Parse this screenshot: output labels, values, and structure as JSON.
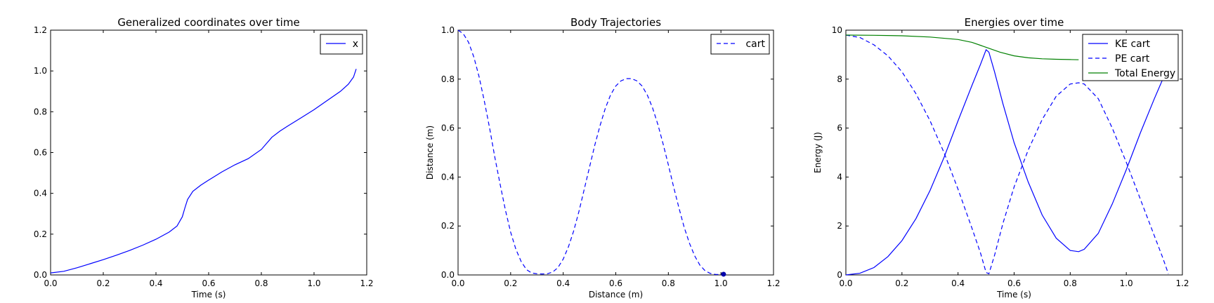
{
  "figure": {
    "chart_data": [
      {
        "type": "line",
        "title": "Generalized coordinates over time",
        "xlabel": "Time (s)",
        "ylabel": "",
        "xlim": [
          0.0,
          1.2
        ],
        "ylim": [
          0.0,
          1.2
        ],
        "xticks": [
          "0.0",
          "0.2",
          "0.4",
          "0.6",
          "0.8",
          "1.0",
          "1.2"
        ],
        "yticks": [
          "0.0",
          "0.2",
          "0.4",
          "0.6",
          "0.8",
          "1.0",
          "1.2"
        ],
        "legend": "top-right",
        "series": [
          {
            "name": "x",
            "style": "solid",
            "color": "#0000ff",
            "points": [
              [
                0,
                0.01
              ],
              [
                0.05,
                0.018
              ],
              [
                0.1,
                0.035
              ],
              [
                0.15,
                0.055
              ],
              [
                0.2,
                0.075
              ],
              [
                0.25,
                0.097
              ],
              [
                0.3,
                0.12
              ],
              [
                0.35,
                0.146
              ],
              [
                0.4,
                0.175
              ],
              [
                0.45,
                0.21
              ],
              [
                0.48,
                0.24
              ],
              [
                0.5,
                0.285
              ],
              [
                0.51,
                0.33
              ],
              [
                0.52,
                0.37
              ],
              [
                0.54,
                0.41
              ],
              [
                0.57,
                0.44
              ],
              [
                0.6,
                0.465
              ],
              [
                0.65,
                0.505
              ],
              [
                0.7,
                0.54
              ],
              [
                0.75,
                0.57
              ],
              [
                0.8,
                0.615
              ],
              [
                0.82,
                0.645
              ],
              [
                0.84,
                0.675
              ],
              [
                0.87,
                0.705
              ],
              [
                0.9,
                0.73
              ],
              [
                0.95,
                0.77
              ],
              [
                1.0,
                0.81
              ],
              [
                1.05,
                0.855
              ],
              [
                1.1,
                0.9
              ],
              [
                1.13,
                0.935
              ],
              [
                1.15,
                0.97
              ],
              [
                1.16,
                1.01
              ]
            ]
          }
        ]
      },
      {
        "type": "line",
        "title": "Body Trajectories",
        "xlabel": "Distance (m)",
        "ylabel": "Distance (m)",
        "xlim": [
          0.0,
          1.2
        ],
        "ylim": [
          0.0,
          1.0
        ],
        "xticks": [
          "0.0",
          "0.2",
          "0.4",
          "0.6",
          "0.8",
          "1.0",
          "1.2"
        ],
        "yticks": [
          "0.0",
          "0.2",
          "0.4",
          "0.6",
          "0.8",
          "1.0"
        ],
        "legend": "top-right",
        "series": [
          {
            "name": "cart",
            "style": "dashed",
            "color": "#0000ff",
            "points": [
              [
                0,
                1.0
              ],
              [
                0.02,
                0.985
              ],
              [
                0.04,
                0.95
              ],
              [
                0.06,
                0.89
              ],
              [
                0.08,
                0.81
              ],
              [
                0.1,
                0.71
              ],
              [
                0.12,
                0.6
              ],
              [
                0.14,
                0.48
              ],
              [
                0.16,
                0.37
              ],
              [
                0.18,
                0.265
              ],
              [
                0.2,
                0.175
              ],
              [
                0.22,
                0.105
              ],
              [
                0.24,
                0.055
              ],
              [
                0.26,
                0.022
              ],
              [
                0.28,
                0.008
              ],
              [
                0.3,
                0.005
              ],
              [
                0.32,
                0.004
              ],
              [
                0.34,
                0.005
              ],
              [
                0.36,
                0.012
              ],
              [
                0.38,
                0.03
              ],
              [
                0.4,
                0.065
              ],
              [
                0.42,
                0.115
              ],
              [
                0.44,
                0.18
              ],
              [
                0.46,
                0.26
              ],
              [
                0.48,
                0.35
              ],
              [
                0.5,
                0.44
              ],
              [
                0.52,
                0.53
              ],
              [
                0.54,
                0.61
              ],
              [
                0.56,
                0.68
              ],
              [
                0.58,
                0.735
              ],
              [
                0.6,
                0.772
              ],
              [
                0.62,
                0.793
              ],
              [
                0.64,
                0.802
              ],
              [
                0.66,
                0.802
              ],
              [
                0.68,
                0.793
              ],
              [
                0.7,
                0.772
              ],
              [
                0.72,
                0.735
              ],
              [
                0.74,
                0.682
              ],
              [
                0.76,
                0.615
              ],
              [
                0.78,
                0.535
              ],
              [
                0.8,
                0.45
              ],
              [
                0.82,
                0.36
              ],
              [
                0.84,
                0.275
              ],
              [
                0.86,
                0.195
              ],
              [
                0.88,
                0.13
              ],
              [
                0.9,
                0.078
              ],
              [
                0.92,
                0.04
              ],
              [
                0.94,
                0.017
              ],
              [
                0.96,
                0.006
              ],
              [
                0.98,
                0.002
              ],
              [
                1.0,
                0.002
              ],
              [
                1.01,
                0.003
              ]
            ]
          }
        ],
        "marker": {
          "x": 1.01,
          "y": 0.003
        }
      },
      {
        "type": "line",
        "title": "Energies over time",
        "xlabel": "Time (s)",
        "ylabel": "Energy (J)",
        "xlim": [
          0.0,
          1.2
        ],
        "ylim": [
          0,
          10
        ],
        "xticks": [
          "0.0",
          "0.2",
          "0.4",
          "0.6",
          "0.8",
          "1.0",
          "1.2"
        ],
        "yticks": [
          "0",
          "2",
          "4",
          "6",
          "8",
          "10"
        ],
        "legend": "top-right",
        "series": [
          {
            "name": "KE cart",
            "style": "solid",
            "color": "#0000ff",
            "points": [
              [
                0,
                0
              ],
              [
                0.05,
                0.07
              ],
              [
                0.1,
                0.3
              ],
              [
                0.15,
                0.75
              ],
              [
                0.2,
                1.4
              ],
              [
                0.25,
                2.3
              ],
              [
                0.3,
                3.45
              ],
              [
                0.35,
                4.8
              ],
              [
                0.4,
                6.3
              ],
              [
                0.45,
                7.75
              ],
              [
                0.48,
                8.6
              ],
              [
                0.5,
                9.2
              ],
              [
                0.51,
                9.1
              ],
              [
                0.53,
                8.3
              ],
              [
                0.56,
                7.0
              ],
              [
                0.6,
                5.4
              ],
              [
                0.65,
                3.8
              ],
              [
                0.7,
                2.45
              ],
              [
                0.75,
                1.5
              ],
              [
                0.8,
                1.0
              ],
              [
                0.83,
                0.95
              ],
              [
                0.85,
                1.05
              ],
              [
                0.9,
                1.7
              ],
              [
                0.95,
                2.9
              ],
              [
                1.0,
                4.3
              ],
              [
                1.05,
                5.8
              ],
              [
                1.1,
                7.2
              ],
              [
                1.13,
                8.0
              ],
              [
                1.16,
                8.8
              ]
            ]
          },
          {
            "name": "PE cart",
            "style": "dashed",
            "color": "#0000ff",
            "points": [
              [
                0,
                9.8
              ],
              [
                0.05,
                9.7
              ],
              [
                0.1,
                9.4
              ],
              [
                0.15,
                8.95
              ],
              [
                0.2,
                8.3
              ],
              [
                0.25,
                7.4
              ],
              [
                0.3,
                6.3
              ],
              [
                0.35,
                5.0
              ],
              [
                0.4,
                3.5
              ],
              [
                0.45,
                1.9
              ],
              [
                0.48,
                0.9
              ],
              [
                0.5,
                0.1
              ],
              [
                0.51,
                0.05
              ],
              [
                0.53,
                0.8
              ],
              [
                0.56,
                2.1
              ],
              [
                0.6,
                3.6
              ],
              [
                0.65,
                5.1
              ],
              [
                0.7,
                6.35
              ],
              [
                0.75,
                7.3
              ],
              [
                0.8,
                7.8
              ],
              [
                0.83,
                7.85
              ],
              [
                0.85,
                7.8
              ],
              [
                0.9,
                7.2
              ],
              [
                0.95,
                6.0
              ],
              [
                1.0,
                4.6
              ],
              [
                1.05,
                3.1
              ],
              [
                1.1,
                1.6
              ],
              [
                1.13,
                0.7
              ],
              [
                1.15,
                0.05
              ]
            ]
          },
          {
            "name": "Total Energy",
            "style": "solid",
            "color": "#008000",
            "points": [
              [
                0,
                9.8
              ],
              [
                0.1,
                9.79
              ],
              [
                0.2,
                9.77
              ],
              [
                0.3,
                9.72
              ],
              [
                0.4,
                9.62
              ],
              [
                0.45,
                9.5
              ],
              [
                0.5,
                9.3
              ],
              [
                0.55,
                9.1
              ],
              [
                0.6,
                8.95
              ],
              [
                0.65,
                8.87
              ],
              [
                0.7,
                8.83
              ],
              [
                0.75,
                8.81
              ],
              [
                0.8,
                8.8
              ],
              [
                0.83,
                8.79
              ]
            ]
          }
        ]
      }
    ]
  }
}
